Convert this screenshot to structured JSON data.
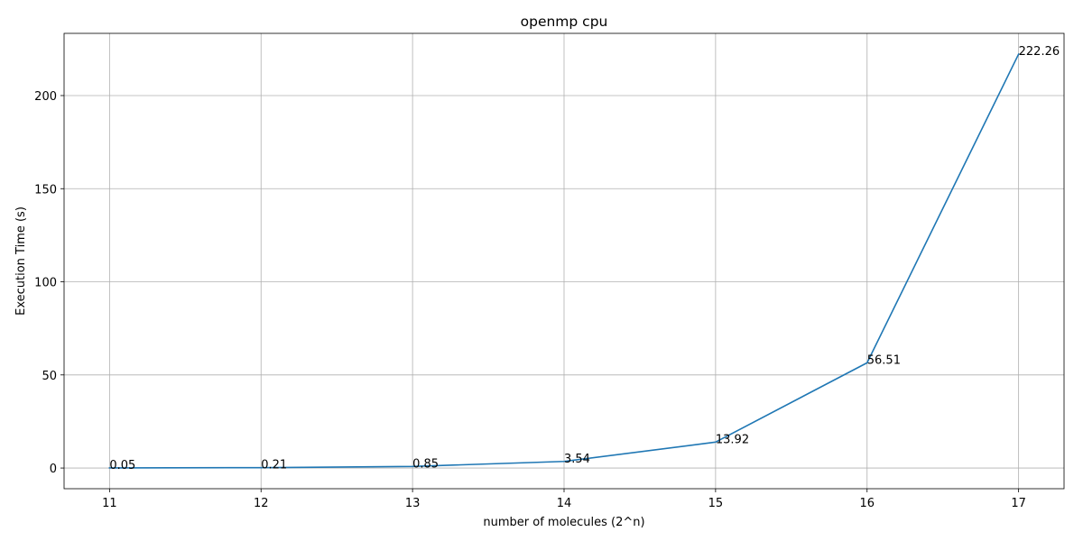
{
  "chart_data": {
    "type": "line",
    "title": "openmp cpu",
    "xlabel": "number of molecules (2^n)",
    "ylabel": "Execution Time (s)",
    "x": [
      11,
      12,
      13,
      14,
      15,
      16,
      17
    ],
    "series": [
      {
        "values": [
          0.05,
          0.21,
          0.85,
          3.54,
          13.92,
          56.51,
          222.26
        ],
        "color": "#1f77b4"
      }
    ],
    "data_labels": [
      "0.05",
      "0.21",
      "0.85",
      "3.54",
      "13.92",
      "56.51",
      "222.26"
    ],
    "xticks": [
      11,
      12,
      13,
      14,
      15,
      16,
      17
    ],
    "xtick_labels": [
      "11",
      "12",
      "13",
      "14",
      "15",
      "16",
      "17"
    ],
    "yticks": [
      0,
      50,
      100,
      150,
      200
    ],
    "ytick_labels": [
      "0",
      "50",
      "100",
      "150",
      "200"
    ],
    "xlim": [
      10.7,
      17.3
    ],
    "ylim": [
      -11.1,
      233.4
    ],
    "grid": true,
    "legend": "none"
  }
}
